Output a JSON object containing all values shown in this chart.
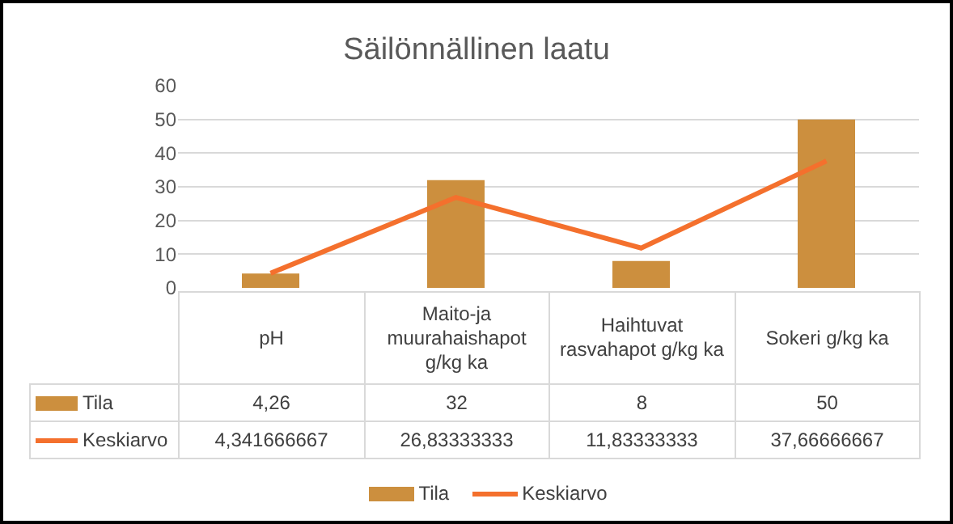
{
  "chart_data": {
    "type": "bar",
    "title": "Säilönnällinen laatu",
    "categories": [
      "pH",
      "Maito-ja muurahaishapot g/kg ka",
      "Haihtuvat rasvahapot g/kg ka",
      "Sokeri g/kg ka"
    ],
    "series": [
      {
        "name": "Tila",
        "color": "#cc8f3e",
        "values": [
          4.26,
          32,
          8,
          50
        ],
        "value_labels": [
          "4,26",
          "32",
          "8",
          "50"
        ]
      },
      {
        "name": "Keskiarvo",
        "type": "line",
        "color": "#f4702d",
        "values": [
          4.341666667,
          26.83333333,
          11.83333333,
          37.66666667
        ],
        "value_labels": [
          "4,341666667",
          "26,83333333",
          "11,83333333",
          "37,66666667"
        ]
      }
    ],
    "ylim": [
      0,
      60
    ],
    "yticks": [
      0,
      10,
      20,
      30,
      40,
      50,
      60
    ],
    "grid": "y",
    "legend": "bottom",
    "tick_labels": "y",
    "line_style": "solid",
    "marker": "none"
  }
}
